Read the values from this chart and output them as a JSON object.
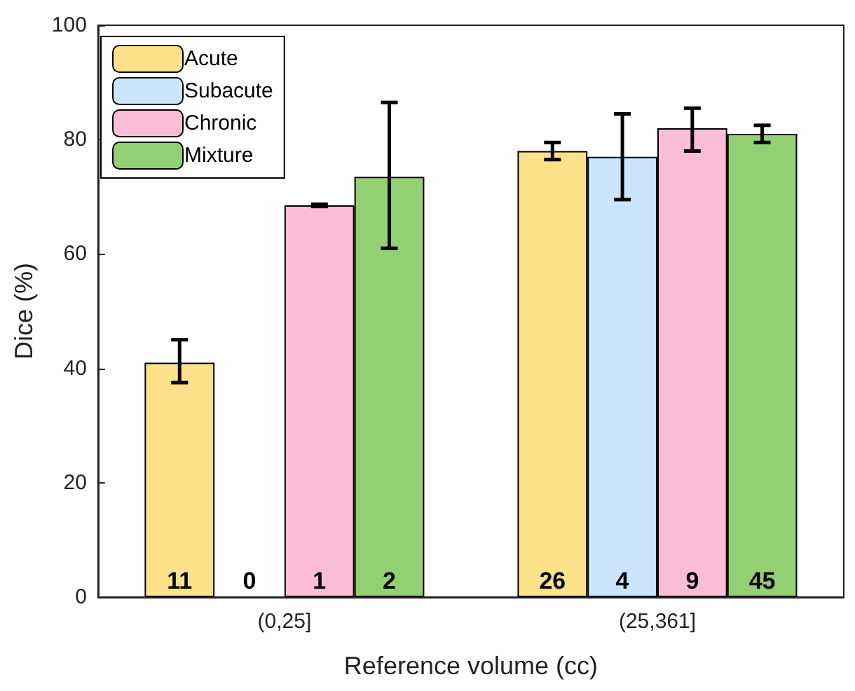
{
  "chart_data": {
    "type": "bar",
    "xlabel": "Reference volume (cc)",
    "ylabel": "Dice (%)",
    "categories": [
      "(0,25]",
      "(25,361]"
    ],
    "series": [
      {
        "name": "Acute",
        "color": "#fde18b",
        "values": [
          41,
          78
        ],
        "errors": [
          [
            37.5,
            45
          ],
          [
            76.5,
            79.5
          ]
        ]
      },
      {
        "name": "Subacute",
        "color": "#cde5fb",
        "values": [
          0,
          77
        ],
        "errors": [
          null,
          [
            69.5,
            84.5
          ]
        ]
      },
      {
        "name": "Chronic",
        "color": "#fbbdd5",
        "values": [
          68.5,
          82
        ],
        "errors": [
          [
            68.3,
            68.7
          ],
          [
            78,
            85.5
          ]
        ]
      },
      {
        "name": "Mixture",
        "color": "#93cf73",
        "values": [
          73.5,
          81
        ],
        "errors": [
          [
            61,
            86.5
          ],
          [
            79.5,
            82.5
          ]
        ]
      }
    ],
    "annotations": [
      "11",
      "0",
      "1",
      "2",
      "26",
      "4",
      "9",
      "45"
    ],
    "ylim": [
      0,
      100
    ],
    "yticks": [
      0,
      20,
      40,
      60,
      80,
      100
    ],
    "grid": false,
    "legend": "top left"
  }
}
